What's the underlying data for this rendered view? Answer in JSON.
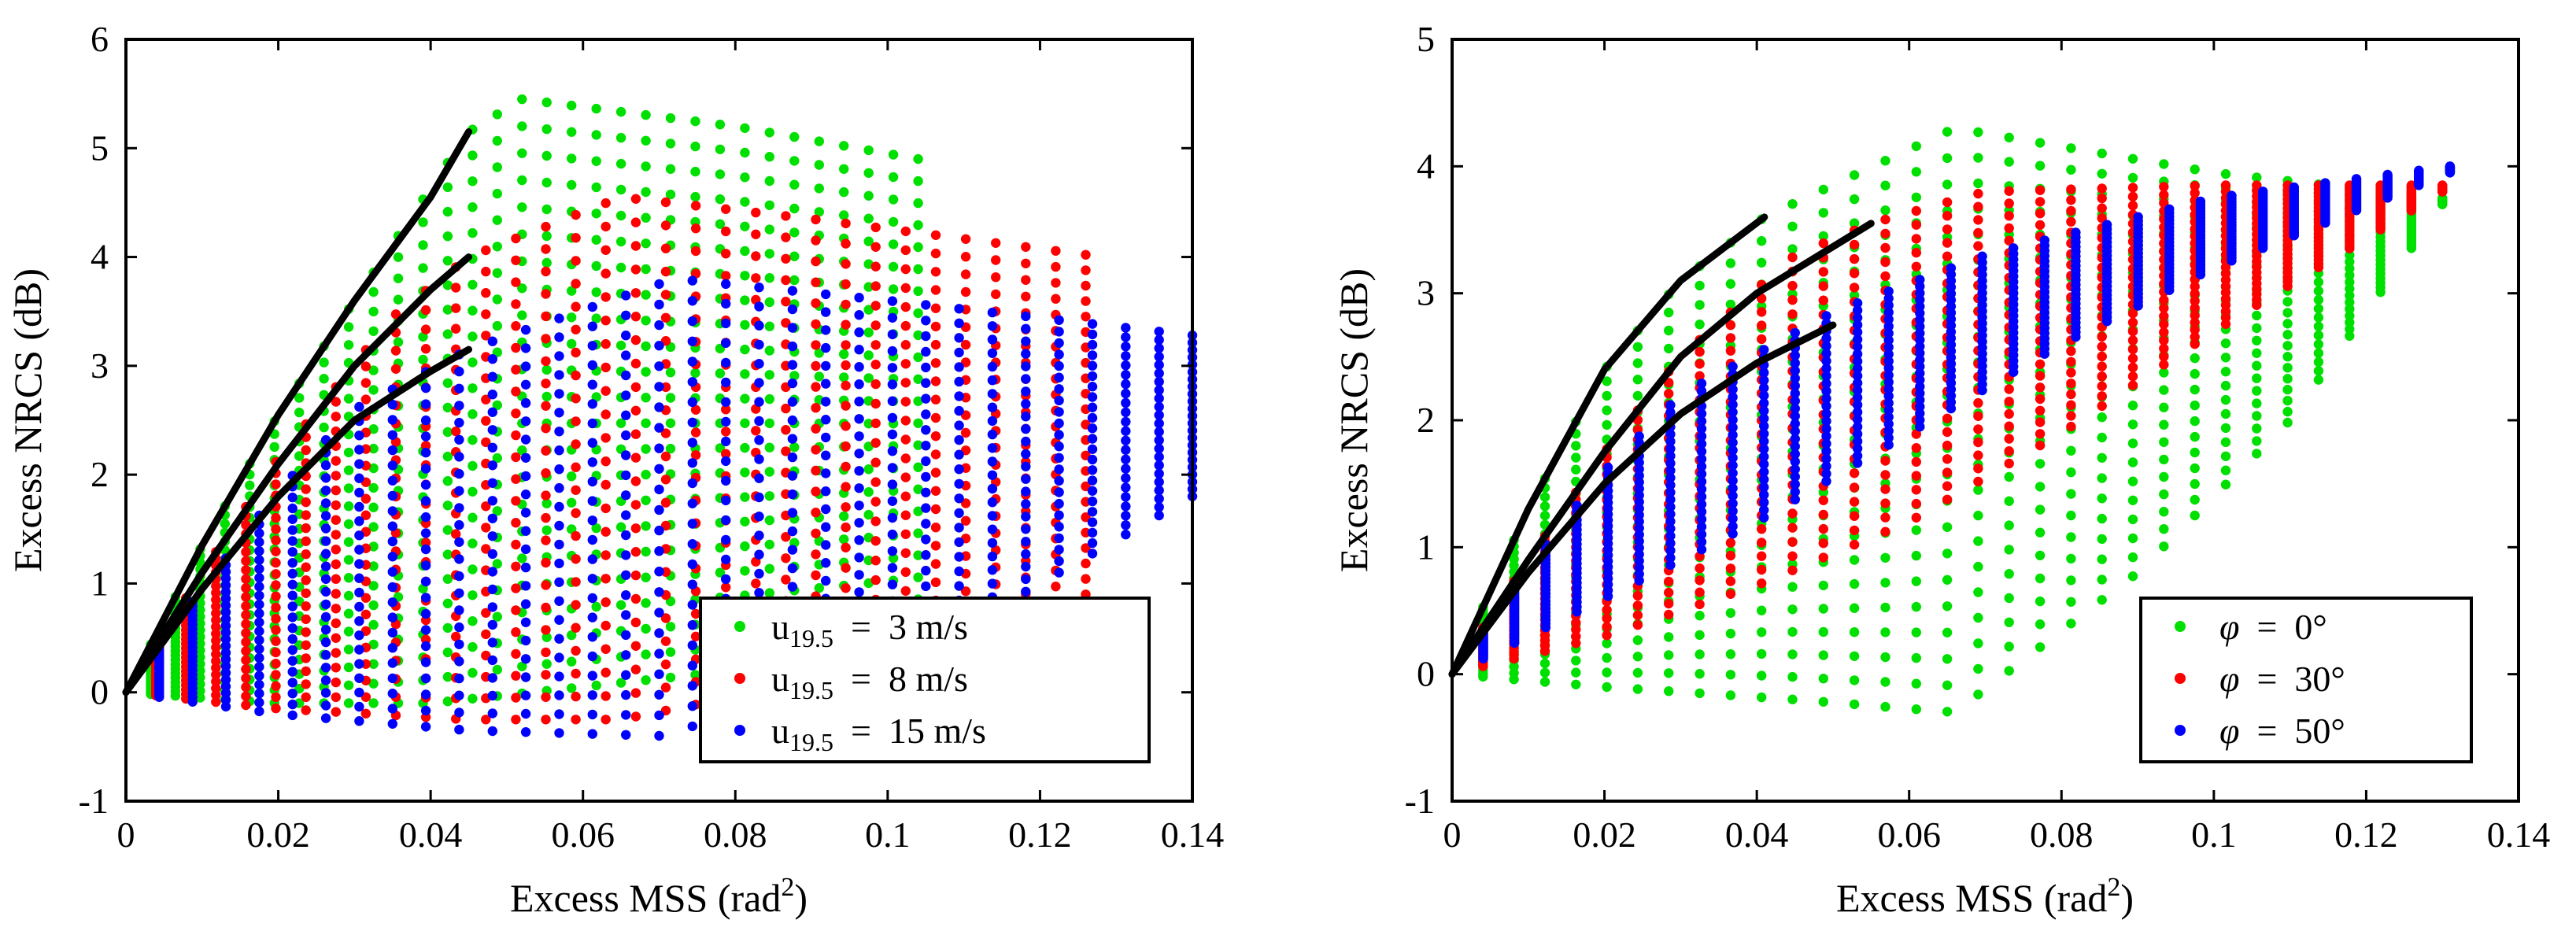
{
  "chart_data": [
    {
      "type": "scatter",
      "title": "",
      "xlabel": "Excess MSS (rad",
      "xlabel_sup": "2",
      "xlabel_end": ")",
      "ylabel": "Excess NRCS (dB)",
      "xlim": [
        0,
        0.14
      ],
      "ylim": [
        -1,
        6
      ],
      "xticks": [
        "0",
        "0.02",
        "0.04",
        "0.06",
        "0.08",
        "0.1",
        "0.12",
        "0.14"
      ],
      "yticks": [
        "-1",
        "0",
        "1",
        "2",
        "3",
        "4",
        "5",
        "6"
      ],
      "legend_position": "lower-right",
      "series": [
        {
          "name": "u19.5 = 3 m/s",
          "legend": {
            "prefix": "u",
            "sub": "19.5",
            "eq": "=",
            "value": "3 m/s"
          },
          "color": "#00e000",
          "envelope": {
            "upper": [
              [
                0,
                0
              ],
              [
                0.01,
                1.35
              ],
              [
                0.02,
                2.55
              ],
              [
                0.03,
                3.6
              ],
              [
                0.045,
                5.15
              ],
              [
                0.052,
                5.45
              ],
              [
                0.08,
                5.2
              ],
              [
                0.104,
                4.9
              ]
            ],
            "lower": [
              [
                0,
                0
              ],
              [
                0.02,
                -0.1
              ],
              [
                0.04,
                -0.1
              ],
              [
                0.06,
                0.05
              ],
              [
                0.08,
                0.2
              ],
              [
                0.1,
                0.4
              ],
              [
                0.104,
                0.45
              ]
            ]
          },
          "curve": [
            [
              0,
              0
            ],
            [
              0.01,
              1.35
            ],
            [
              0.02,
              2.55
            ],
            [
              0.03,
              3.6
            ],
            [
              0.04,
              4.55
            ],
            [
              0.045,
              5.15
            ]
          ]
        },
        {
          "name": "u19.5 = 8 m/s",
          "legend": {
            "prefix": "u",
            "sub": "19.5",
            "eq": "=",
            "value": "8 m/s"
          },
          "color": "#ff0000",
          "envelope": {
            "upper": [
              [
                0,
                0
              ],
              [
                0.01,
                1.1
              ],
              [
                0.02,
                2.15
              ],
              [
                0.035,
                3.45
              ],
              [
                0.045,
                4.0
              ],
              [
                0.065,
                4.55
              ],
              [
                0.09,
                4.35
              ],
              [
                0.126,
                4.02
              ]
            ],
            "lower": [
              [
                0,
                0
              ],
              [
                0.02,
                -0.15
              ],
              [
                0.045,
                -0.25
              ],
              [
                0.065,
                -0.25
              ],
              [
                0.09,
                0.1
              ],
              [
                0.11,
                0.6
              ],
              [
                0.126,
                0.9
              ]
            ]
          },
          "curve": [
            [
              0,
              0
            ],
            [
              0.01,
              1.1
            ],
            [
              0.02,
              2.1
            ],
            [
              0.03,
              3.0
            ],
            [
              0.04,
              3.7
            ],
            [
              0.045,
              4.0
            ]
          ]
        },
        {
          "name": "u19.5 = 15 m/s",
          "legend": {
            "prefix": "u",
            "sub": "19.5",
            "eq": "=",
            "value": "15 m/s"
          },
          "color": "#0000ff",
          "envelope": {
            "upper": [
              [
                0,
                0
              ],
              [
                0.01,
                0.95
              ],
              [
                0.02,
                1.85
              ],
              [
                0.03,
                2.6
              ],
              [
                0.045,
                3.15
              ],
              [
                0.072,
                3.8
              ],
              [
                0.1,
                3.6
              ],
              [
                0.14,
                3.28
              ]
            ],
            "lower": [
              [
                0,
                0
              ],
              [
                0.02,
                -0.2
              ],
              [
                0.045,
                -0.35
              ],
              [
                0.07,
                -0.4
              ],
              [
                0.1,
                0.2
              ],
              [
                0.12,
                1.0
              ],
              [
                0.14,
                1.8
              ]
            ]
          },
          "curve": [
            [
              0,
              0
            ],
            [
              0.01,
              0.95
            ],
            [
              0.02,
              1.8
            ],
            [
              0.03,
              2.5
            ],
            [
              0.04,
              2.95
            ],
            [
              0.045,
              3.15
            ]
          ]
        }
      ]
    },
    {
      "type": "scatter",
      "title": "",
      "xlabel": "Excess MSS (rad",
      "xlabel_sup": "2",
      "xlabel_end": ")",
      "ylabel": "Excess NRCS (dB)",
      "xlim": [
        0,
        0.14
      ],
      "ylim": [
        -1,
        5
      ],
      "xticks": [
        "0",
        "0.02",
        "0.04",
        "0.06",
        "0.08",
        "0.1",
        "0.12",
        "0.14"
      ],
      "yticks": [
        "-1",
        "0",
        "1",
        "2",
        "3",
        "4",
        "5"
      ],
      "legend_position": "lower-right",
      "series": [
        {
          "name": "φ = 0°",
          "legend": {
            "prefix": "φ",
            "sub": "",
            "eq": "=",
            "value": "0°"
          },
          "color": "#00e000",
          "envelope": {
            "upper": [
              [
                0,
                0
              ],
              [
                0.01,
                1.3
              ],
              [
                0.02,
                2.4
              ],
              [
                0.03,
                3.1
              ],
              [
                0.041,
                3.6
              ],
              [
                0.066,
                4.3
              ],
              [
                0.1,
                3.95
              ],
              [
                0.13,
                3.75
              ]
            ],
            "lower": [
              [
                0,
                0
              ],
              [
                0.02,
                -0.1
              ],
              [
                0.045,
                -0.2
              ],
              [
                0.066,
                -0.3
              ],
              [
                0.09,
                0.8
              ],
              [
                0.11,
                2.0
              ],
              [
                0.13,
                3.7
              ]
            ]
          },
          "curve": [
            [
              0,
              0
            ],
            [
              0.01,
              1.3
            ],
            [
              0.02,
              2.4
            ],
            [
              0.03,
              3.1
            ],
            [
              0.041,
              3.6
            ]
          ]
        },
        {
          "name": "φ = 30°",
          "legend": {
            "prefix": "φ",
            "sub": "",
            "eq": "=",
            "value": "30°"
          },
          "color": "#ff0000",
          "envelope": {
            "upper": [
              [
                0,
                0
              ],
              [
                0.01,
                0.9
              ],
              [
                0.02,
                1.75
              ],
              [
                0.03,
                2.5
              ],
              [
                0.045,
                3.3
              ],
              [
                0.055,
                3.55
              ],
              [
                0.07,
                3.8
              ],
              [
                0.1,
                3.85
              ],
              [
                0.13,
                3.85
              ]
            ],
            "lower": [
              [
                0,
                0
              ],
              [
                0.02,
                0.3
              ],
              [
                0.04,
                0.7
              ],
              [
                0.06,
                1.2
              ],
              [
                0.08,
                1.9
              ],
              [
                0.1,
                2.7
              ],
              [
                0.13,
                3.8
              ]
            ]
          },
          "curve": [
            [
              0,
              0
            ],
            [
              0.01,
              0.9
            ],
            [
              0.02,
              1.75
            ],
            [
              0.03,
              2.5
            ],
            [
              0.04,
              3.0
            ],
            [
              0.055,
              3.55
            ]
          ]
        },
        {
          "name": "φ = 50°",
          "legend": {
            "prefix": "φ",
            "sub": "",
            "eq": "=",
            "value": "50°"
          },
          "color": "#0000ff",
          "envelope": {
            "upper": [
              [
                0,
                0
              ],
              [
                0.01,
                0.85
              ],
              [
                0.02,
                1.6
              ],
              [
                0.03,
                2.2
              ],
              [
                0.05,
                2.85
              ],
              [
                0.07,
                3.3
              ],
              [
                0.1,
                3.75
              ],
              [
                0.131,
                4.0
              ]
            ],
            "lower": [
              [
                0,
                0
              ],
              [
                0.02,
                0.6
              ],
              [
                0.04,
                1.2
              ],
              [
                0.06,
                1.9
              ],
              [
                0.08,
                2.6
              ],
              [
                0.1,
                3.2
              ],
              [
                0.131,
                3.95
              ]
            ]
          },
          "curve": [
            [
              0,
              0
            ],
            [
              0.01,
              0.8
            ],
            [
              0.02,
              1.5
            ],
            [
              0.03,
              2.05
            ],
            [
              0.04,
              2.45
            ],
            [
              0.05,
              2.75
            ]
          ]
        }
      ]
    }
  ]
}
